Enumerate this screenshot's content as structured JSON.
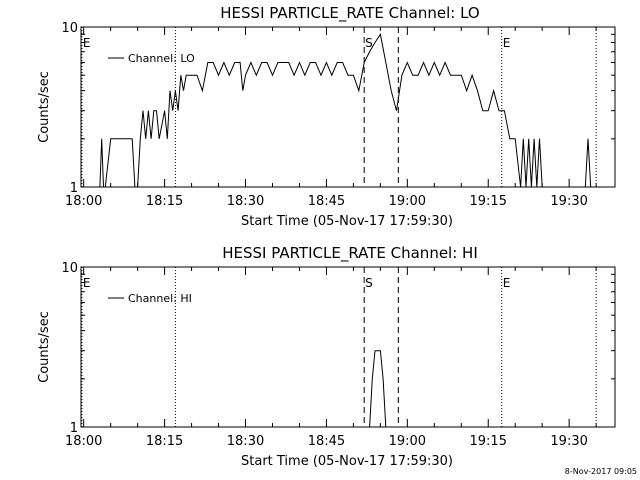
{
  "chart_data": [
    {
      "type": "line",
      "title": "HESSI PARTICLE_RATE Channel: LO",
      "xlabel": "Start Time (05-Nov-17 17:59:30)",
      "ylabel": "Counts/sec",
      "yscale": "log",
      "xlim": [
        "17:59:30",
        "19:38:30"
      ],
      "ylim": [
        1,
        10
      ],
      "xticks": [
        "18:00",
        "18:15",
        "18:30",
        "18:45",
        "19:00",
        "19:15",
        "19:30"
      ],
      "yticks": [
        "1",
        "10"
      ],
      "legend": "Channel: LO",
      "legend_position": "top-left",
      "markers": [
        {
          "label": "E",
          "time": "17:59:40",
          "style": "dotted"
        },
        {
          "label": "",
          "time": "18:17:00",
          "style": "dotted"
        },
        {
          "label": "S",
          "time": "18:52:00",
          "style": "dashed"
        },
        {
          "label": "",
          "time": "18:58:20",
          "style": "dashed"
        },
        {
          "label": "E",
          "time": "19:17:30",
          "style": "dotted"
        },
        {
          "label": "",
          "time": "19:35:00",
          "style": "dotted"
        }
      ],
      "series": [
        {
          "name": "Channel: LO",
          "x": [
            "18:03:00",
            "18:03:20",
            "18:03:40",
            "18:04:00",
            "18:05:00",
            "18:06:00",
            "18:06:30",
            "18:07:00",
            "18:08:00",
            "18:09:00",
            "18:09:30",
            "18:10:00",
            "18:10:30",
            "18:11:00",
            "18:11:30",
            "18:12:00",
            "18:12:30",
            "18:13:00",
            "18:13:30",
            "18:14:00",
            "18:15:00",
            "18:15:30",
            "18:16:00",
            "18:16:30",
            "18:17:00",
            "18:17:30",
            "18:18:00",
            "18:18:30",
            "18:19:00",
            "18:20:00",
            "18:21:00",
            "18:22:00",
            "18:23:00",
            "18:24:00",
            "18:25:00",
            "18:26:00",
            "18:27:00",
            "18:28:00",
            "18:29:00",
            "18:29:30",
            "18:30:00",
            "18:31:00",
            "18:32:00",
            "18:33:00",
            "18:34:00",
            "18:35:00",
            "18:36:00",
            "18:37:00",
            "18:38:00",
            "18:39:00",
            "18:40:00",
            "18:41:00",
            "18:42:00",
            "18:43:00",
            "18:44:00",
            "18:45:00",
            "18:46:00",
            "18:47:00",
            "18:48:00",
            "18:49:00",
            "18:50:00",
            "18:51:00",
            "18:52:00",
            "18:53:00",
            "18:54:00",
            "18:55:00",
            "18:56:00",
            "18:57:00",
            "18:58:00",
            "18:59:00",
            "19:00:00",
            "19:01:00",
            "19:02:00",
            "19:03:00",
            "19:04:00",
            "19:05:00",
            "19:06:00",
            "19:07:00",
            "19:08:00",
            "19:09:00",
            "19:10:00",
            "19:11:00",
            "19:12:00",
            "19:13:00",
            "19:14:00",
            "19:15:00",
            "19:16:00",
            "19:17:00",
            "19:18:00",
            "19:19:00",
            "19:20:00",
            "19:21:00",
            "19:21:30",
            "19:22:00",
            "19:22:30",
            "19:23:00",
            "19:23:30",
            "19:24:00",
            "19:24:30",
            "19:25:00",
            "19:33:00",
            "19:33:30",
            "19:34:00"
          ],
          "values": [
            1,
            2,
            1,
            1,
            2,
            2,
            2,
            2,
            2,
            2,
            1,
            1,
            2,
            3,
            2,
            3,
            2,
            3,
            3,
            2,
            3,
            2,
            4,
            3,
            4,
            3,
            5,
            4,
            5,
            5,
            5,
            4,
            6,
            6,
            5,
            6,
            5,
            6,
            6,
            4,
            5,
            6,
            5,
            6,
            6,
            5,
            6,
            6,
            6,
            5,
            6,
            5,
            6,
            6,
            5,
            6,
            5,
            6,
            6,
            5,
            5,
            4,
            6,
            7,
            8,
            9,
            6,
            4,
            3,
            5,
            6,
            5,
            5,
            6,
            5,
            6,
            5,
            6,
            5,
            5,
            5,
            4,
            5,
            4,
            3,
            3,
            4,
            3,
            3,
            2,
            2,
            1,
            2,
            1,
            2,
            1,
            2,
            1,
            2,
            1,
            1,
            2,
            1
          ]
        }
      ]
    },
    {
      "type": "line",
      "title": "HESSI PARTICLE_RATE Channel: HI",
      "xlabel": "Start Time (05-Nov-17 17:59:30)",
      "ylabel": "Counts/sec",
      "yscale": "log",
      "xlim": [
        "17:59:30",
        "19:38:30"
      ],
      "ylim": [
        1,
        10
      ],
      "xticks": [
        "18:00",
        "18:15",
        "18:30",
        "18:45",
        "19:00",
        "19:15",
        "19:30"
      ],
      "yticks": [
        "1",
        "10"
      ],
      "legend": "Channel: HI",
      "legend_position": "top-left",
      "markers": [
        {
          "label": "E",
          "time": "17:59:40",
          "style": "dotted"
        },
        {
          "label": "",
          "time": "18:17:00",
          "style": "dotted"
        },
        {
          "label": "S",
          "time": "18:52:00",
          "style": "dashed"
        },
        {
          "label": "",
          "time": "18:58:20",
          "style": "dashed"
        },
        {
          "label": "E",
          "time": "19:17:30",
          "style": "dotted"
        },
        {
          "label": "",
          "time": "19:35:00",
          "style": "dotted"
        }
      ],
      "series": [
        {
          "name": "Channel: HI",
          "x": [
            "18:53:00",
            "18:53:30",
            "18:54:00",
            "18:55:00",
            "18:55:30",
            "18:56:00"
          ],
          "values": [
            1,
            2,
            3,
            3,
            2,
            1
          ]
        }
      ]
    }
  ],
  "footer": {
    "timestamp": "8-Nov-2017 09:05"
  }
}
